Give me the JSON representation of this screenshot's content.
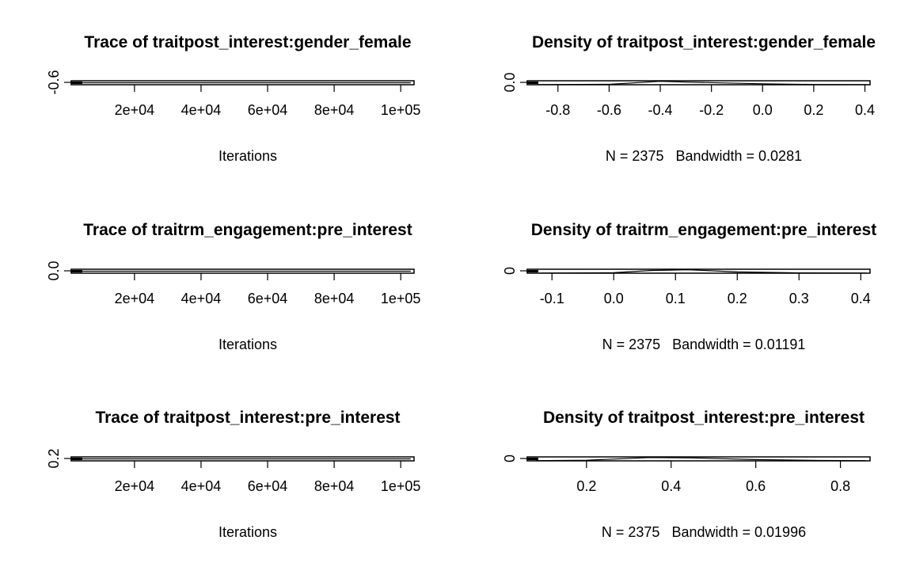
{
  "chart_data": [
    {
      "type": "line",
      "title": "Trace of traitpost_interest:gender_female",
      "xlabel": "Iterations",
      "ylabel": "",
      "x_ticks": [
        "2e+04",
        "4e+04",
        "6e+04",
        "8e+04",
        "1e+05"
      ],
      "x_tick_values": [
        20000,
        40000,
        60000,
        80000,
        100000
      ],
      "y_ticks": [
        "-0.6"
      ],
      "y_tick_values": [
        -0.6
      ],
      "xlim": [
        1000,
        104000
      ],
      "ylim": [
        -0.63,
        -0.57
      ],
      "series": [
        {
          "x": [
            1000,
            103000
          ],
          "y": [
            -0.6,
            -0.6
          ]
        }
      ]
    },
    {
      "type": "line",
      "title": "Density of traitpost_interest:gender_female",
      "xlabel": "N = 2375   Bandwidth = 0.0281",
      "ylabel": "",
      "x_ticks": [
        "-0.8",
        "-0.6",
        "-0.4",
        "-0.2",
        "0.0",
        "0.2",
        "0.4"
      ],
      "x_tick_values": [
        -0.8,
        -0.6,
        -0.4,
        -0.2,
        0.0,
        0.2,
        0.4
      ],
      "y_ticks": [
        "0.0"
      ],
      "y_tick_values": [
        0.0
      ],
      "xlim": [
        -0.92,
        0.42
      ],
      "ylim": [
        -0.05,
        1.4
      ],
      "series": [
        {
          "x": [
            -0.88,
            -0.6,
            -0.4,
            -0.3,
            0.0,
            0.2,
            0.41
          ],
          "y": [
            0.0,
            0.1,
            1.2,
            0.9,
            0.3,
            0.05,
            0.0
          ]
        }
      ]
    },
    {
      "type": "line",
      "title": "Trace of traitrm_engagement:pre_interest",
      "xlabel": "Iterations",
      "ylabel": "",
      "x_ticks": [
        "2e+04",
        "4e+04",
        "6e+04",
        "8e+04",
        "1e+05"
      ],
      "x_tick_values": [
        20000,
        40000,
        60000,
        80000,
        100000
      ],
      "y_ticks": [
        "0.0"
      ],
      "y_tick_values": [
        0.0
      ],
      "xlim": [
        1000,
        104000
      ],
      "ylim": [
        -0.03,
        0.03
      ],
      "series": [
        {
          "x": [
            1000,
            103000
          ],
          "y": [
            0.0,
            0.0
          ]
        }
      ]
    },
    {
      "type": "line",
      "title": "Density of traitrm_engagement:pre_interest",
      "xlabel": "N = 2375   Bandwidth = 0.01191",
      "ylabel": "",
      "x_ticks": [
        "-0.1",
        "0.0",
        "0.1",
        "0.2",
        "0.3",
        "0.4"
      ],
      "x_tick_values": [
        -0.1,
        0.0,
        0.1,
        0.2,
        0.3,
        0.4
      ],
      "y_ticks": [
        "0"
      ],
      "y_tick_values": [
        0
      ],
      "xlim": [
        -0.14,
        0.415
      ],
      "ylim": [
        -0.2,
        5.2
      ],
      "series": [
        {
          "x": [
            -0.12,
            0.0,
            0.06,
            0.12,
            0.2,
            0.3,
            0.41
          ],
          "y": [
            0.0,
            0.5,
            3.5,
            4.5,
            1.5,
            0.2,
            0.0
          ]
        }
      ]
    },
    {
      "type": "line",
      "title": "Trace of traitpost_interest:pre_interest",
      "xlabel": "Iterations",
      "ylabel": "",
      "x_ticks": [
        "2e+04",
        "4e+04",
        "6e+04",
        "8e+04",
        "1e+05"
      ],
      "x_tick_values": [
        20000,
        40000,
        60000,
        80000,
        100000
      ],
      "y_ticks": [
        "0.2"
      ],
      "y_tick_values": [
        0.2
      ],
      "xlim": [
        1000,
        104000
      ],
      "ylim": [
        0.17,
        0.23
      ],
      "series": [
        {
          "x": [
            1000,
            103000
          ],
          "y": [
            0.2,
            0.2
          ]
        }
      ]
    },
    {
      "type": "line",
      "title": "Density of traitpost_interest:pre_interest",
      "xlabel": "N = 2375   Bandwidth = 0.01996",
      "ylabel": "",
      "x_ticks": [
        "0.2",
        "0.4",
        "0.6",
        "0.8"
      ],
      "x_tick_values": [
        0.2,
        0.4,
        0.6,
        0.8
      ],
      "y_ticks": [
        "0"
      ],
      "y_tick_values": [
        0
      ],
      "xlim": [
        0.06,
        0.87
      ],
      "ylim": [
        -0.2,
        3.6
      ],
      "series": [
        {
          "x": [
            0.08,
            0.2,
            0.35,
            0.45,
            0.6,
            0.75,
            0.86
          ],
          "y": [
            0.0,
            0.4,
            3.0,
            2.6,
            1.0,
            0.2,
            0.0
          ]
        }
      ]
    }
  ]
}
